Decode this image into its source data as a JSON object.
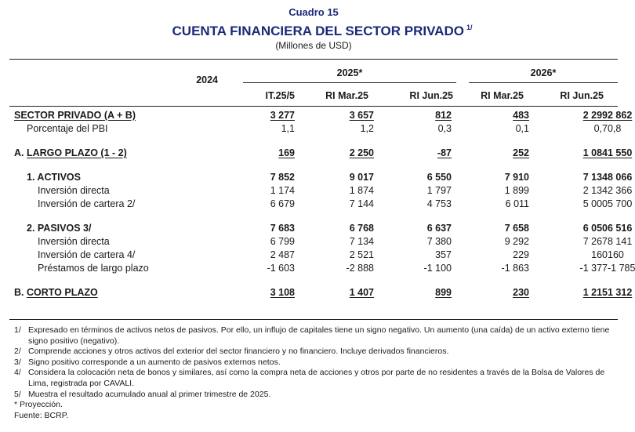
{
  "header": {
    "kicker": "Cuadro 15",
    "title": "CUENTA FINANCIERA DEL SECTOR PRIVADO",
    "title_note": "1/",
    "subtitle": "(Millones de USD)"
  },
  "columns": {
    "year_2024": "2024",
    "group_2025": "2025*",
    "group_2026": "2026*",
    "sub": [
      "IT.25/5",
      "RI Mar.25",
      "RI Jun.25",
      "RI Mar.25",
      "RI Jun.25"
    ]
  },
  "rows": [
    {
      "label": "SECTOR PRIVADO (A + B)",
      "values": [
        "3 277",
        "3 657",
        "812",
        "483",
        "2 299",
        "2 862"
      ]
    },
    {
      "label": "Porcentaje del PBI",
      "values": [
        "1,1",
        "1,2",
        "0,3",
        "0,1",
        "0,7",
        "0,8"
      ]
    },
    {
      "prefix": "A.",
      "label": "LARGO PLAZO (1 - 2)",
      "values": [
        "169",
        "2 250",
        "-87",
        "252",
        "1 084",
        "1 550"
      ]
    },
    {
      "label": "1.  ACTIVOS",
      "values": [
        "7 852",
        "9 017",
        "6 550",
        "7 910",
        "7 134",
        "8 066"
      ]
    },
    {
      "label": "Inversión directa",
      "values": [
        "1 174",
        "1 874",
        "1 797",
        "1 899",
        "2 134",
        "2 366"
      ]
    },
    {
      "label": "Inversión de cartera 2/",
      "values": [
        "6 679",
        "7 144",
        "4 753",
        "6 011",
        "5 000",
        "5 700"
      ]
    },
    {
      "label": "2.  PASIVOS 3/",
      "values": [
        "7 683",
        "6 768",
        "6 637",
        "7 658",
        "6 050",
        "6 516"
      ]
    },
    {
      "label": "Inversión directa",
      "values": [
        "6 799",
        "7 134",
        "7 380",
        "9 292",
        "7 267",
        "8 141"
      ]
    },
    {
      "label": "Inversión de cartera 4/",
      "values": [
        "2 487",
        "2 521",
        "357",
        "229",
        "160",
        "160"
      ]
    },
    {
      "label": "Préstamos de largo plazo",
      "values": [
        "-1 603",
        "-2 888",
        "-1 100",
        "-1 863",
        "-1 377",
        "-1 785"
      ]
    },
    {
      "prefix": "B.",
      "label": "CORTO PLAZO",
      "values": [
        "3 108",
        "1 407",
        "899",
        "230",
        "1 215",
        "1 312"
      ]
    }
  ],
  "notes": [
    {
      "key": "1/",
      "text": "Expresado en términos de activos netos de pasivos. Por ello, un influjo de capitales tiene un signo negativo. Un aumento (una caída) de un activo externo tiene signo positivo (negativo)."
    },
    {
      "key": "2/",
      "text": "Comprende acciones y otros activos del exterior del sector financiero y no financiero. Incluye derivados financieros."
    },
    {
      "key": "3/",
      "text": "Signo positivo corresponde a un aumento de pasivos externos netos."
    },
    {
      "key": "4/",
      "text": "Considera la colocación neta de bonos y similares, así como la compra neta de acciones y otros por parte de no residentes a través de la Bolsa de Valores de Lima, registrada por CAVALI."
    },
    {
      "key": "5/",
      "text": "Muestra el resultado acumulado anual al primer trimestre de 2025."
    }
  ],
  "footer": {
    "projection": "* Proyección.",
    "source": "Fuente: BCRP."
  }
}
